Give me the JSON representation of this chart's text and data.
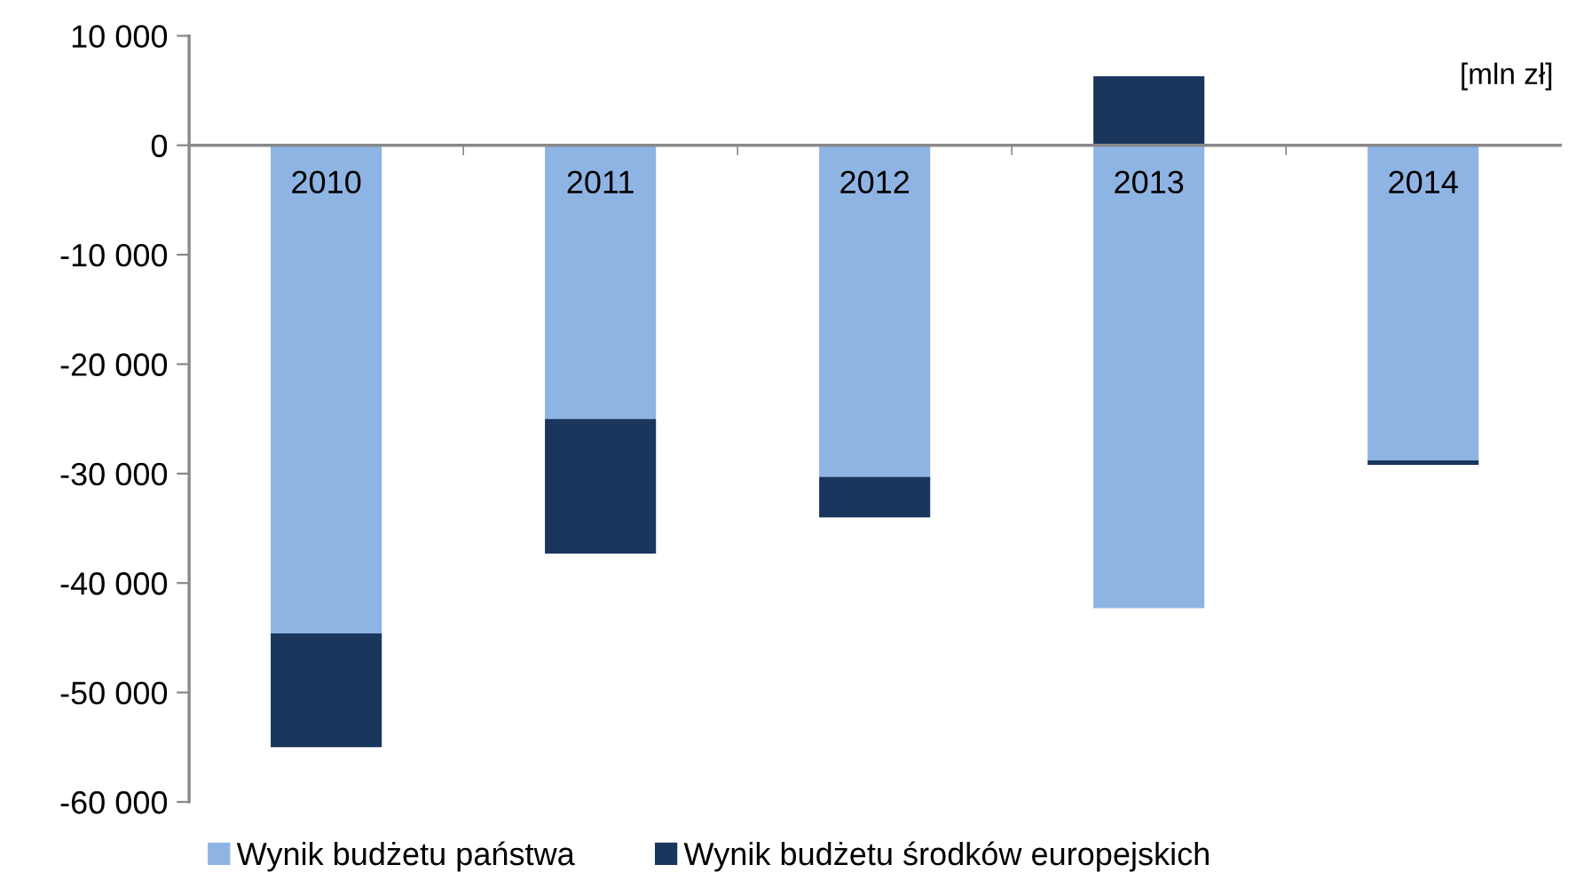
{
  "chart_data": {
    "type": "bar",
    "stacked": true,
    "categories": [
      "2010",
      "2011",
      "2012",
      "2013",
      "2014"
    ],
    "series": [
      {
        "name": "Wynik budżetu państwa",
        "color": "#8eb4e3",
        "values": [
          -44600,
          -25000,
          -30300,
          -42300,
          -28800
        ]
      },
      {
        "name": "Wynik budżetu środków europejskich",
        "color": "#1a365d",
        "values": [
          -10400,
          -12300,
          -3700,
          6300,
          -400
        ]
      }
    ],
    "ylim": [
      -60000,
      10000
    ],
    "yticks": [
      {
        "value": 10000,
        "label": "10 000"
      },
      {
        "value": 0,
        "label": "0"
      },
      {
        "value": -10000,
        "label": "-10 000"
      },
      {
        "value": -20000,
        "label": "-20 000"
      },
      {
        "value": -30000,
        "label": "-30 000"
      },
      {
        "value": -40000,
        "label": "-40 000"
      },
      {
        "value": -50000,
        "label": "-50 000"
      },
      {
        "value": -60000,
        "label": "-60 000"
      }
    ],
    "annotations": [
      "[mln zł]"
    ],
    "legend": "bottom",
    "grid": false
  }
}
